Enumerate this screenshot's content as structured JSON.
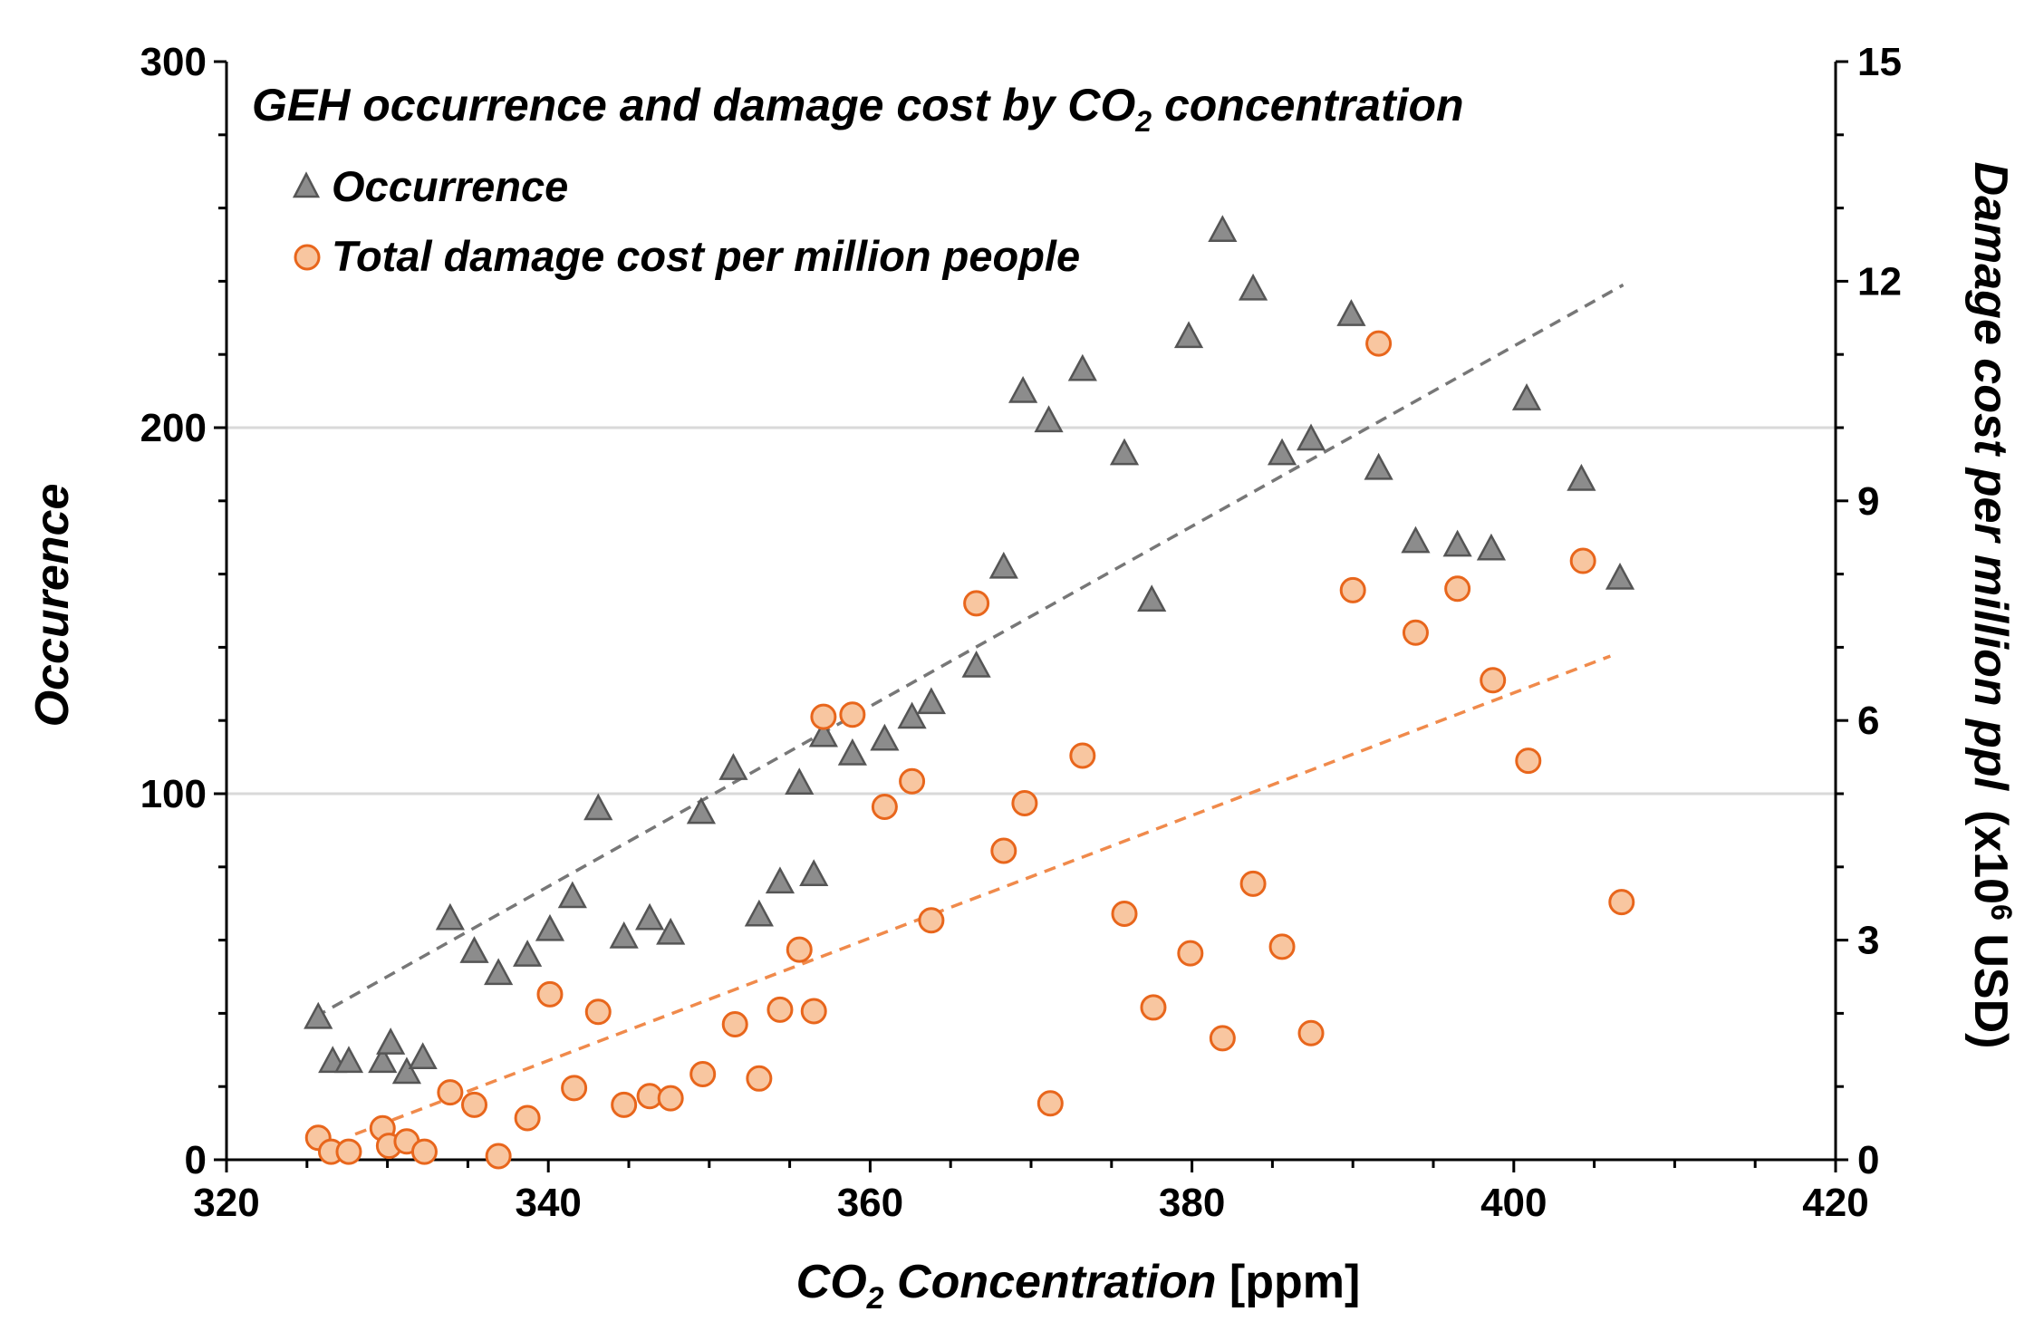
{
  "chart_data": {
    "type": "scatter",
    "title": "GEH occurrence and damage cost by CO",
    "title_sub": "2",
    "title_suffix": " concentration",
    "xlabel_prefix": "CO",
    "xlabel_sub": "2",
    "xlabel_italic": " Concentration",
    "xlabel_unit": " [ppm]",
    "ylabel_left": "Occurence",
    "ylabel_right_italic": "Damage cost per million ppl",
    "ylabel_right_unit_a": "(x10",
    "ylabel_right_unit_sup": "6",
    "ylabel_right_unit_b": " USD)",
    "xlim": [
      320,
      420
    ],
    "ylim_left": [
      0,
      300
    ],
    "ylim_right": [
      0,
      15
    ],
    "xticks": [
      "320",
      "340",
      "360",
      "380",
      "400",
      "420"
    ],
    "yticks_left": [
      "0",
      "100",
      "200",
      "300"
    ],
    "yticks_right": [
      "0",
      "3",
      "6",
      "9",
      "12",
      "15"
    ],
    "gridlines_left": [
      100,
      200
    ],
    "colors": {
      "occurrence_fill": "#8c8c8c",
      "occurrence_stroke": "#555555",
      "damage_fill": "#f8c6a0",
      "damage_stroke": "#e8661c",
      "occurrence_trend": "#777777",
      "damage_trend": "#f08a4b",
      "grid": "#d9d9d9"
    },
    "series": [
      {
        "name": "Occurrence",
        "axis": "left",
        "marker": "triangle",
        "points": [
          [
            325.7,
            39
          ],
          [
            326.6,
            27
          ],
          [
            327.6,
            27
          ],
          [
            329.7,
            27
          ],
          [
            330.2,
            32
          ],
          [
            331.2,
            24
          ],
          [
            332.2,
            28
          ],
          [
            333.9,
            66
          ],
          [
            335.4,
            57
          ],
          [
            336.9,
            51
          ],
          [
            338.7,
            56
          ],
          [
            340.1,
            63
          ],
          [
            341.5,
            72
          ],
          [
            343.1,
            96
          ],
          [
            344.7,
            61
          ],
          [
            346.3,
            66
          ],
          [
            347.6,
            62
          ],
          [
            349.5,
            95
          ],
          [
            351.5,
            107
          ],
          [
            353.1,
            67
          ],
          [
            354.4,
            76
          ],
          [
            355.6,
            103
          ],
          [
            356.5,
            78
          ],
          [
            357.1,
            116
          ],
          [
            358.9,
            111
          ],
          [
            360.9,
            115
          ],
          [
            362.6,
            121
          ],
          [
            363.8,
            125
          ],
          [
            366.6,
            135
          ],
          [
            368.3,
            162
          ],
          [
            369.5,
            210
          ],
          [
            371.1,
            202
          ],
          [
            373.2,
            216
          ],
          [
            375.8,
            193
          ],
          [
            377.5,
            153
          ],
          [
            379.8,
            225
          ],
          [
            381.9,
            254
          ],
          [
            383.8,
            238
          ],
          [
            385.6,
            193
          ],
          [
            387.4,
            197
          ],
          [
            389.9,
            231
          ],
          [
            391.6,
            189
          ],
          [
            393.9,
            169
          ],
          [
            396.5,
            168
          ],
          [
            398.6,
            167
          ],
          [
            400.8,
            208
          ],
          [
            404.2,
            186
          ],
          [
            406.6,
            159
          ]
        ]
      },
      {
        "name": "Total damage cost per million people",
        "axis": "right",
        "marker": "circle",
        "points": [
          [
            325.7,
            0.3
          ],
          [
            326.5,
            0.11
          ],
          [
            327.6,
            0.11
          ],
          [
            329.7,
            0.43
          ],
          [
            330.1,
            0.19
          ],
          [
            331.2,
            0.25
          ],
          [
            332.3,
            0.11
          ],
          [
            333.9,
            0.92
          ],
          [
            335.4,
            0.75
          ],
          [
            336.9,
            0.05
          ],
          [
            338.7,
            0.57
          ],
          [
            340.1,
            2.26
          ],
          [
            341.6,
            0.98
          ],
          [
            343.1,
            2.02
          ],
          [
            344.7,
            0.75
          ],
          [
            346.3,
            0.87
          ],
          [
            347.6,
            0.84
          ],
          [
            349.6,
            1.17
          ],
          [
            351.6,
            1.85
          ],
          [
            353.1,
            1.11
          ],
          [
            354.4,
            2.05
          ],
          [
            355.6,
            2.87
          ],
          [
            356.5,
            2.03
          ],
          [
            357.1,
            6.05
          ],
          [
            358.9,
            6.08
          ],
          [
            360.9,
            4.82
          ],
          [
            362.6,
            5.17
          ],
          [
            363.8,
            3.27
          ],
          [
            366.6,
            7.6
          ],
          [
            368.3,
            4.22
          ],
          [
            369.6,
            4.87
          ],
          [
            371.2,
            0.77
          ],
          [
            373.2,
            5.52
          ],
          [
            375.8,
            3.36
          ],
          [
            377.6,
            2.08
          ],
          [
            379.9,
            2.82
          ],
          [
            381.9,
            1.66
          ],
          [
            383.8,
            3.77
          ],
          [
            385.6,
            2.91
          ],
          [
            387.4,
            1.73
          ],
          [
            390.0,
            7.78
          ],
          [
            391.6,
            11.15
          ],
          [
            393.9,
            7.2
          ],
          [
            396.5,
            7.8
          ],
          [
            398.7,
            6.55
          ],
          [
            400.9,
            5.45
          ],
          [
            404.3,
            8.18
          ],
          [
            406.7,
            3.52
          ]
        ]
      }
    ],
    "trendlines": [
      {
        "series": "Occurrence",
        "axis": "left",
        "x": [
          325.5,
          406.8
        ],
        "y": [
          39,
          239
        ]
      },
      {
        "series": "Total damage cost per million people",
        "axis": "right",
        "x": [
          328.0,
          406.0
        ],
        "y": [
          0.35,
          6.88
        ]
      }
    ],
    "legend": {
      "placement": "top-left",
      "entries": [
        "Occurrence",
        "Total damage cost per million people"
      ]
    }
  }
}
